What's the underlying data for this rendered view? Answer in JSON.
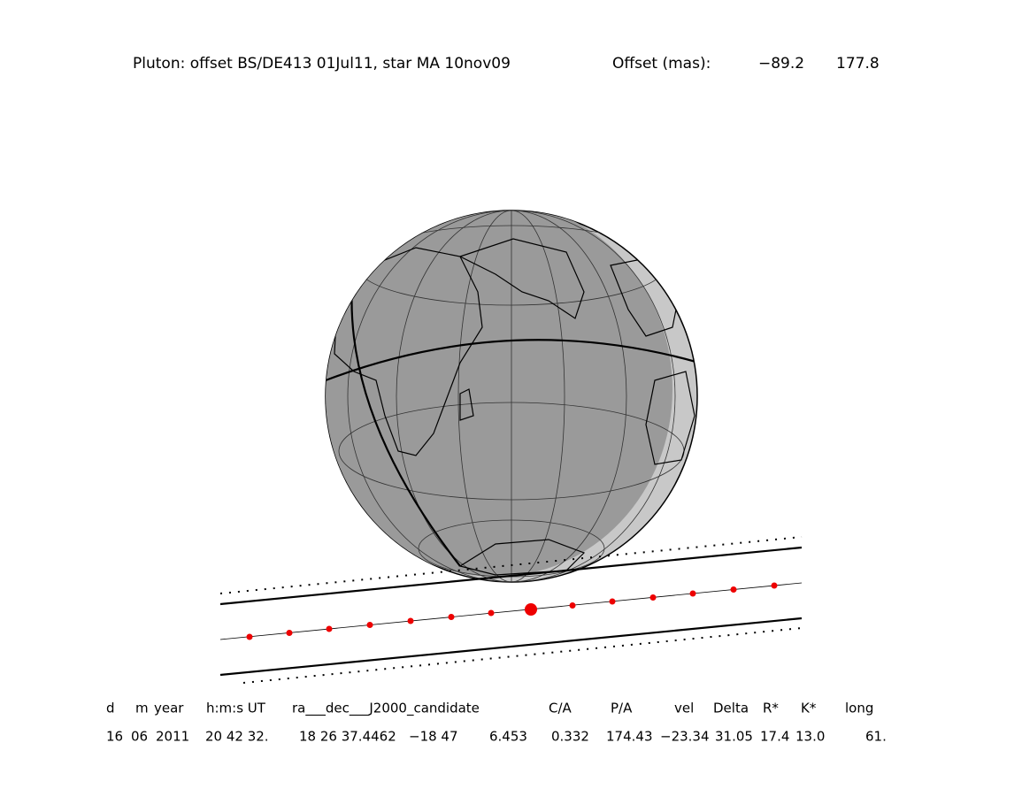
{
  "title": {
    "text": "Pluton: offset BS/DE413 01Jul11, star MA 10nov09",
    "offset_label": "Offset (mas):",
    "offset_ra": "−89.2",
    "offset_dec": "177.8"
  },
  "table": {
    "header": [
      "d",
      "m",
      "year",
      "h:m:s UT",
      "ra___dec___J2000_candidate",
      "C/A",
      "P/A",
      "vel",
      "Delta",
      "R*",
      "K*",
      "long"
    ],
    "row": [
      "16",
      "06",
      "2011",
      "20 42 32.",
      "18 26 37.4462",
      "−18 47",
      "6.453",
      "0.332",
      "174.43",
      "−23.34",
      "31.05",
      "17.4",
      "13.0",
      "61."
    ]
  }
}
